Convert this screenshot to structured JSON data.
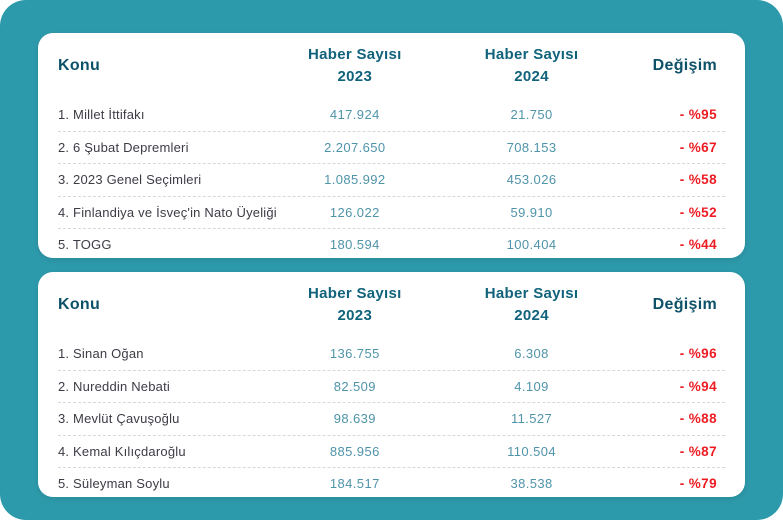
{
  "page": {
    "background_color": "#2d9aab",
    "card_color": "#ffffff",
    "header_text_color": "#0d5168",
    "value_text_color": "#4f94a9",
    "change_text_color": "#ec1c24"
  },
  "tables": [
    {
      "headers": {
        "konu": "Konu",
        "col2023_line1": "Haber Sayısı",
        "col2023_line2": "2023",
        "col2024_line1": "Haber Sayısı",
        "col2024_line2": "2024",
        "degisim": "Değişim"
      },
      "rows": [
        {
          "konu": "1. Millet İttifakı",
          "y2023": "417.924",
          "y2024": "21.750",
          "change": "- %95"
        },
        {
          "konu": "2. 6 Şubat Depremleri",
          "y2023": "2.207.650",
          "y2024": "708.153",
          "change": "- %67"
        },
        {
          "konu": "3. 2023 Genel Seçimleri",
          "y2023": "1.085.992",
          "y2024": "453.026",
          "change": "- %58"
        },
        {
          "konu": "4. Finlandiya ve İsveç'in Nato Üyeliği",
          "y2023": "126.022",
          "y2024": "59.910",
          "change": "- %52"
        },
        {
          "konu": "5. TOGG",
          "y2023": "180.594",
          "y2024": "100.404",
          "change": "- %44"
        }
      ]
    },
    {
      "headers": {
        "konu": "Konu",
        "col2023_line1": "Haber Sayısı",
        "col2023_line2": "2023",
        "col2024_line1": "Haber Sayısı",
        "col2024_line2": "2024",
        "degisim": "Değişim"
      },
      "rows": [
        {
          "konu": "1. Sinan Oğan",
          "y2023": "136.755",
          "y2024": "6.308",
          "change": "- %96"
        },
        {
          "konu": "2. Nureddin Nebati",
          "y2023": "82.509",
          "y2024": "4.109",
          "change": "- %94"
        },
        {
          "konu": "3. Mevlüt Çavuşoğlu",
          "y2023": "98.639",
          "y2024": "11.527",
          "change": "- %88"
        },
        {
          "konu": "4. Kemal Kılıçdaroğlu",
          "y2023": "885.956",
          "y2024": "110.504",
          "change": "- %87"
        },
        {
          "konu": "5. Süleyman Soylu",
          "y2023": "184.517",
          "y2024": "38.538",
          "change": "- %79"
        }
      ]
    }
  ],
  "chart_data": [
    {
      "type": "table",
      "columns": [
        "Konu",
        "Haber Sayısı 2023",
        "Haber Sayısı 2024",
        "Değişim"
      ],
      "rows": [
        [
          "1. Millet İttifakı",
          417924,
          21750,
          -95
        ],
        [
          "2. 6 Şubat Depremleri",
          2207650,
          708153,
          -67
        ],
        [
          "3. 2023 Genel Seçimleri",
          1085992,
          453026,
          -58
        ],
        [
          "4. Finlandiya ve İsveç'in Nato Üyeliği",
          126022,
          59910,
          -52
        ],
        [
          "5. TOGG",
          180594,
          100404,
          -44
        ]
      ],
      "change_unit": "percent"
    },
    {
      "type": "table",
      "columns": [
        "Konu",
        "Haber Sayısı 2023",
        "Haber Sayısı 2024",
        "Değişim"
      ],
      "rows": [
        [
          "1. Sinan Oğan",
          136755,
          6308,
          -96
        ],
        [
          "2. Nureddin Nebati",
          82509,
          4109,
          -94
        ],
        [
          "3. Mevlüt Çavuşoğlu",
          98639,
          11527,
          -88
        ],
        [
          "4. Kemal Kılıçdaroğlu",
          885956,
          110504,
          -87
        ],
        [
          "5. Süleyman Soylu",
          184517,
          38538,
          -79
        ]
      ],
      "change_unit": "percent"
    }
  ]
}
